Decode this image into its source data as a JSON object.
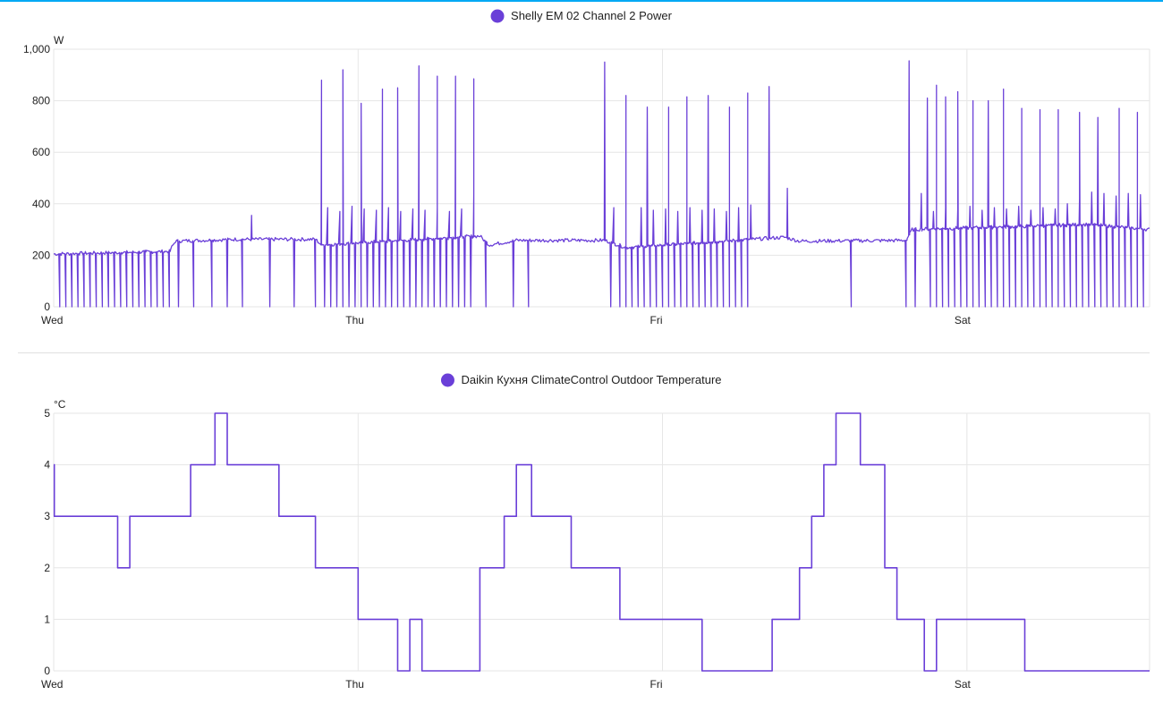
{
  "chart_data": [
    {
      "type": "line",
      "title": "",
      "legend_position": "top-center",
      "grid": true,
      "ylabel": "W",
      "ylim": [
        0,
        1000
      ],
      "yticks": [
        {
          "value": 0,
          "label": "0"
        },
        {
          "value": 200,
          "label": "200"
        },
        {
          "value": 400,
          "label": "400"
        },
        {
          "value": 600,
          "label": "600"
        },
        {
          "value": 800,
          "label": "800"
        },
        {
          "value": 1000,
          "label": "1,000"
        }
      ],
      "xlim": [
        0,
        3.6
      ],
      "xunit": "days",
      "xticks": [
        {
          "value": 0,
          "label": "Wed"
        },
        {
          "value": 1,
          "label": "Thu"
        },
        {
          "value": 2,
          "label": "Fri"
        },
        {
          "value": 3,
          "label": "Sat"
        }
      ],
      "series": [
        {
          "name": "Shelly EM 02 Channel 2 Power",
          "color": "#6a3fd8",
          "step": false,
          "baseline": [
            [
              0.0,
              205
            ],
            [
              0.38,
              215
            ],
            [
              0.4,
              255
            ],
            [
              0.6,
              262
            ],
            [
              0.86,
              262
            ],
            [
              0.88,
              240
            ],
            [
              1.4,
              275
            ],
            [
              1.43,
              240
            ],
            [
              1.52,
              258
            ],
            [
              1.81,
              258
            ],
            [
              1.88,
              230
            ],
            [
              2.4,
              270
            ],
            [
              2.45,
              255
            ],
            [
              2.8,
              258
            ],
            [
              2.82,
              300
            ],
            [
              3.4,
              320
            ],
            [
              3.6,
              300
            ]
          ],
          "dips": [
            0.02,
            0.04,
            0.06,
            0.08,
            0.1,
            0.12,
            0.14,
            0.16,
            0.18,
            0.2,
            0.22,
            0.24,
            0.26,
            0.28,
            0.3,
            0.32,
            0.34,
            0.36,
            0.38,
            0.41,
            0.46,
            0.52,
            0.57,
            0.62,
            0.71,
            0.79,
            0.86,
            0.89,
            0.91,
            0.93,
            0.95,
            0.97,
            0.99,
            1.01,
            1.03,
            1.05,
            1.07,
            1.09,
            1.11,
            1.13,
            1.15,
            1.17,
            1.19,
            1.21,
            1.23,
            1.25,
            1.27,
            1.29,
            1.31,
            1.33,
            1.35,
            1.37,
            1.42,
            1.51,
            1.56,
            1.83,
            1.86,
            1.88,
            1.9,
            1.92,
            1.94,
            1.96,
            1.98,
            2.0,
            2.02,
            2.04,
            2.06,
            2.08,
            2.1,
            2.12,
            2.14,
            2.16,
            2.18,
            2.2,
            2.22,
            2.24,
            2.26,
            2.28,
            2.62,
            2.8,
            2.83,
            2.88,
            2.9,
            2.92,
            2.94,
            2.96,
            2.98,
            3.0,
            3.02,
            3.04,
            3.06,
            3.08,
            3.1,
            3.12,
            3.14,
            3.16,
            3.18,
            3.2,
            3.22,
            3.24,
            3.26,
            3.28,
            3.3,
            3.32,
            3.34,
            3.36,
            3.38,
            3.4,
            3.42,
            3.44,
            3.46,
            3.48,
            3.5,
            3.52,
            3.54,
            3.56,
            3.58
          ],
          "bumps": [
            [
              0.9,
              385
            ],
            [
              0.94,
              370
            ],
            [
              0.98,
              390
            ],
            [
              1.02,
              380
            ],
            [
              1.06,
              375
            ],
            [
              1.1,
              385
            ],
            [
              1.14,
              370
            ],
            [
              1.18,
              380
            ],
            [
              1.22,
              375
            ],
            [
              1.26,
              385
            ],
            [
              1.3,
              370
            ],
            [
              1.34,
              380
            ],
            [
              1.38,
              440
            ],
            [
              1.84,
              385
            ],
            [
              1.88,
              370
            ],
            [
              1.93,
              385
            ],
            [
              1.97,
              375
            ],
            [
              2.01,
              380
            ],
            [
              2.05,
              370
            ],
            [
              2.09,
              385
            ],
            [
              2.13,
              375
            ],
            [
              2.17,
              380
            ],
            [
              2.21,
              370
            ],
            [
              2.25,
              385
            ],
            [
              2.29,
              395
            ],
            [
              2.85,
              440
            ],
            [
              2.89,
              370
            ],
            [
              2.93,
              385
            ],
            [
              2.97,
              380
            ],
            [
              3.01,
              390
            ],
            [
              3.05,
              375
            ],
            [
              3.09,
              385
            ],
            [
              3.13,
              380
            ],
            [
              3.17,
              390
            ],
            [
              3.21,
              375
            ],
            [
              3.25,
              385
            ],
            [
              3.29,
              380
            ],
            [
              3.33,
              400
            ],
            [
              3.37,
              420
            ],
            [
              3.41,
              445
            ],
            [
              3.45,
              440
            ],
            [
              3.49,
              430
            ],
            [
              3.53,
              440
            ],
            [
              3.57,
              435
            ]
          ],
          "spikes": [
            [
              0.65,
              355
            ],
            [
              0.88,
              880
            ],
            [
              0.95,
              920
            ],
            [
              1.01,
              790
            ],
            [
              1.08,
              845
            ],
            [
              1.13,
              850
            ],
            [
              1.2,
              935
            ],
            [
              1.26,
              895
            ],
            [
              1.32,
              895
            ],
            [
              1.38,
              885
            ],
            [
              1.81,
              950
            ],
            [
              1.88,
              820
            ],
            [
              1.95,
              775
            ],
            [
              2.02,
              775
            ],
            [
              2.08,
              815
            ],
            [
              2.15,
              820
            ],
            [
              2.22,
              775
            ],
            [
              2.28,
              830
            ],
            [
              2.35,
              855
            ],
            [
              2.41,
              460
            ],
            [
              2.81,
              955
            ],
            [
              2.87,
              810
            ],
            [
              2.9,
              860
            ],
            [
              2.93,
              815
            ],
            [
              2.97,
              835
            ],
            [
              3.02,
              800
            ],
            [
              3.07,
              800
            ],
            [
              3.12,
              845
            ],
            [
              3.18,
              770
            ],
            [
              3.24,
              765
            ],
            [
              3.3,
              765
            ],
            [
              3.37,
              755
            ],
            [
              3.43,
              735
            ],
            [
              3.5,
              770
            ],
            [
              3.56,
              755
            ]
          ]
        }
      ]
    },
    {
      "type": "line",
      "title": "",
      "legend_position": "top-center",
      "grid": true,
      "ylabel": "°C",
      "ylim": [
        0,
        5
      ],
      "yticks": [
        {
          "value": 0,
          "label": "0"
        },
        {
          "value": 1,
          "label": "1"
        },
        {
          "value": 2,
          "label": "2"
        },
        {
          "value": 3,
          "label": "3"
        },
        {
          "value": 4,
          "label": "4"
        },
        {
          "value": 5,
          "label": "5"
        }
      ],
      "xlim": [
        0,
        3.6
      ],
      "xunit": "days",
      "xticks": [
        {
          "value": 0,
          "label": "Wed"
        },
        {
          "value": 1,
          "label": "Thu"
        },
        {
          "value": 2,
          "label": "Fri"
        },
        {
          "value": 3,
          "label": "Sat"
        }
      ],
      "series": [
        {
          "name": "Daikin Кухня ClimateControl Outdoor Temperature",
          "color": "#6a3fd8",
          "step": true,
          "points": [
            [
              0.0,
              4
            ],
            [
              0.002,
              3
            ],
            [
              0.21,
              2
            ],
            [
              0.25,
              3
            ],
            [
              0.45,
              4
            ],
            [
              0.53,
              5
            ],
            [
              0.57,
              4
            ],
            [
              0.74,
              3
            ],
            [
              0.86,
              2
            ],
            [
              1.0,
              1
            ],
            [
              1.13,
              0
            ],
            [
              1.17,
              1
            ],
            [
              1.21,
              0
            ],
            [
              1.4,
              2
            ],
            [
              1.48,
              3
            ],
            [
              1.52,
              4
            ],
            [
              1.57,
              3
            ],
            [
              1.7,
              2
            ],
            [
              1.86,
              1
            ],
            [
              2.13,
              0
            ],
            [
              2.36,
              1
            ],
            [
              2.45,
              2
            ],
            [
              2.49,
              3
            ],
            [
              2.53,
              4
            ],
            [
              2.57,
              5
            ],
            [
              2.65,
              4
            ],
            [
              2.73,
              2
            ],
            [
              2.77,
              1
            ],
            [
              2.86,
              0
            ],
            [
              2.9,
              1
            ],
            [
              3.19,
              0
            ],
            [
              3.6,
              0
            ]
          ]
        }
      ]
    }
  ]
}
